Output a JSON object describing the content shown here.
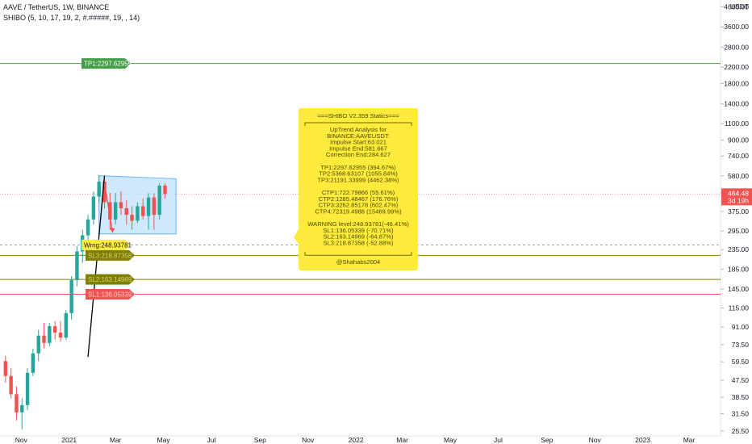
{
  "header": {
    "symbol_line": "AAVE / TetherUS, 1W, BINANCE",
    "indicator_line": "SHIBO (5, 10, 17, 19, 2, #.#####, 19, , 14)"
  },
  "colors": {
    "up": "#26a69a",
    "down": "#ef5350",
    "tp": "#43a047",
    "warning": "#ffeb3b",
    "sl_olive": "#808000",
    "sl_red": "#ef5350",
    "stats_box": "#ffeb3b"
  },
  "chart_data": {
    "type": "candlestick",
    "y_scale": "log",
    "ylim": [
      24,
      5000
    ],
    "currency": "USDT",
    "y_ticks": [
      25.5,
      31.5,
      38.5,
      47.5,
      59.5,
      73.5,
      91,
      115,
      145,
      185,
      235,
      295,
      375,
      470,
      580,
      740,
      900,
      1100,
      1400,
      1800,
      2200,
      2800,
      3600,
      4600
    ],
    "x_ticks": [
      "Nov",
      "2021",
      "Mar",
      "May",
      "Jul",
      "Sep",
      "Nov",
      "2022",
      "Mar",
      "May",
      "Jul",
      "Sep",
      "Nov",
      "2023",
      "Mar"
    ],
    "x_tick_dates": [
      "2020-11-01",
      "2021-01-01",
      "2021-03-01",
      "2021-05-01",
      "2021-07-01",
      "2021-09-01",
      "2021-11-01",
      "2022-01-01",
      "2022-03-01",
      "2022-05-01",
      "2022-07-01",
      "2022-09-01",
      "2022-11-01",
      "2023-01-01",
      "2023-03-01"
    ],
    "x_start": "2020-10-05",
    "x_end": "2023-04-10",
    "candles": [
      {
        "date": "2020-10-12",
        "o": 60,
        "h": 64,
        "l": 46,
        "c": 50
      },
      {
        "date": "2020-10-19",
        "o": 50,
        "h": 55,
        "l": 38,
        "c": 40
      },
      {
        "date": "2020-10-26",
        "o": 40,
        "h": 44,
        "l": 29,
        "c": 32
      },
      {
        "date": "2020-11-02",
        "o": 32,
        "h": 38,
        "l": 26,
        "c": 35
      },
      {
        "date": "2020-11-09",
        "o": 35,
        "h": 55,
        "l": 33,
        "c": 52
      },
      {
        "date": "2020-11-16",
        "o": 52,
        "h": 70,
        "l": 50,
        "c": 66
      },
      {
        "date": "2020-11-23",
        "o": 66,
        "h": 88,
        "l": 60,
        "c": 82
      },
      {
        "date": "2020-11-30",
        "o": 82,
        "h": 96,
        "l": 70,
        "c": 75
      },
      {
        "date": "2020-12-07",
        "o": 75,
        "h": 96,
        "l": 72,
        "c": 92
      },
      {
        "date": "2020-12-14",
        "o": 92,
        "h": 98,
        "l": 78,
        "c": 85
      },
      {
        "date": "2020-12-21",
        "o": 85,
        "h": 98,
        "l": 76,
        "c": 80
      },
      {
        "date": "2020-12-28",
        "o": 80,
        "h": 112,
        "l": 78,
        "c": 108
      },
      {
        "date": "2021-01-04",
        "o": 108,
        "h": 170,
        "l": 100,
        "c": 162
      },
      {
        "date": "2021-01-11",
        "o": 162,
        "h": 245,
        "l": 150,
        "c": 230
      },
      {
        "date": "2021-01-18",
        "o": 230,
        "h": 300,
        "l": 200,
        "c": 280
      },
      {
        "date": "2021-01-25",
        "o": 280,
        "h": 360,
        "l": 255,
        "c": 340
      },
      {
        "date": "2021-02-01",
        "o": 340,
        "h": 480,
        "l": 320,
        "c": 450
      },
      {
        "date": "2021-02-08",
        "o": 450,
        "h": 580,
        "l": 420,
        "c": 540
      },
      {
        "date": "2021-02-15",
        "o": 540,
        "h": 560,
        "l": 390,
        "c": 420
      },
      {
        "date": "2021-02-22",
        "o": 420,
        "h": 470,
        "l": 300,
        "c": 340
      },
      {
        "date": "2021-03-01",
        "o": 340,
        "h": 470,
        "l": 320,
        "c": 420
      },
      {
        "date": "2021-03-08",
        "o": 420,
        "h": 480,
        "l": 360,
        "c": 390
      },
      {
        "date": "2021-03-15",
        "o": 390,
        "h": 430,
        "l": 320,
        "c": 360
      },
      {
        "date": "2021-03-22",
        "o": 360,
        "h": 400,
        "l": 300,
        "c": 335
      },
      {
        "date": "2021-03-29",
        "o": 335,
        "h": 420,
        "l": 325,
        "c": 400
      },
      {
        "date": "2021-04-05",
        "o": 400,
        "h": 440,
        "l": 340,
        "c": 355
      },
      {
        "date": "2021-04-12",
        "o": 355,
        "h": 470,
        "l": 300,
        "c": 445
      },
      {
        "date": "2021-04-19",
        "o": 445,
        "h": 470,
        "l": 300,
        "c": 360
      },
      {
        "date": "2021-04-26",
        "o": 360,
        "h": 530,
        "l": 340,
        "c": 515
      },
      {
        "date": "2021-05-03",
        "o": 515,
        "h": 530,
        "l": 440,
        "c": 464.48
      }
    ],
    "current_price": {
      "label": "464.48",
      "countdown": "3d 19h",
      "value": 464.48
    },
    "levels": [
      {
        "label": "TP1:2297.62955",
        "value": 2297.62955,
        "kind": "tp"
      },
      {
        "label": "Wrng:248.93781",
        "value": 248.93781,
        "kind": "warning"
      },
      {
        "label": "SL3:218.87358",
        "value": 218.87358,
        "kind": "sl_olive"
      },
      {
        "label": "SL2:163.14969",
        "value": 163.14969,
        "kind": "sl_olive"
      },
      {
        "label": "SL1:136.05339",
        "value": 136.05339,
        "kind": "sl_red"
      }
    ],
    "impulse_line": {
      "start_date": "2021-01-25",
      "start_value": 63.021,
      "end_date": "2021-02-15",
      "end_value": 581.667
    },
    "correction_arrow": {
      "date": "2021-02-15",
      "from_value": 530,
      "to_value": 290
    },
    "correction_box": {
      "start_date": "2021-02-08",
      "end_date": "2021-05-17",
      "top_start": 581.667,
      "top_end": 560,
      "bottom_start": 285,
      "bottom_end": 284.627
    },
    "stats_box": {
      "title": "===SHIBO V2.359 Statics===",
      "lines": [
        "UpTrend Analysis for",
        "BINANCE:AAVEUSDT:",
        "Impulse Start:63.021",
        "Impulse End:581.667",
        "Correction End:284.627",
        "",
        "TP1:2297.62955 (394.67%)",
        "TP2:5368.63107 (1055.84%)",
        "TP3:21191.33999 (4462.38%)",
        "",
        "CTP1:722.79866 (55.61%)",
        "CTP2:1285.48467 (176.76%)",
        "CTP3:3262.85178 (602.47%)",
        "CTP4:72319.4988 (15469.99%)",
        "",
        "WARNING level:248.93781(-46.41%)",
        "SL1:136.05339 (-70.71%)",
        "SL2:163.14969 (-64.87%)",
        "SL3:218.87358 (-52.88%)"
      ],
      "footer": "@Shahabs2004"
    }
  }
}
